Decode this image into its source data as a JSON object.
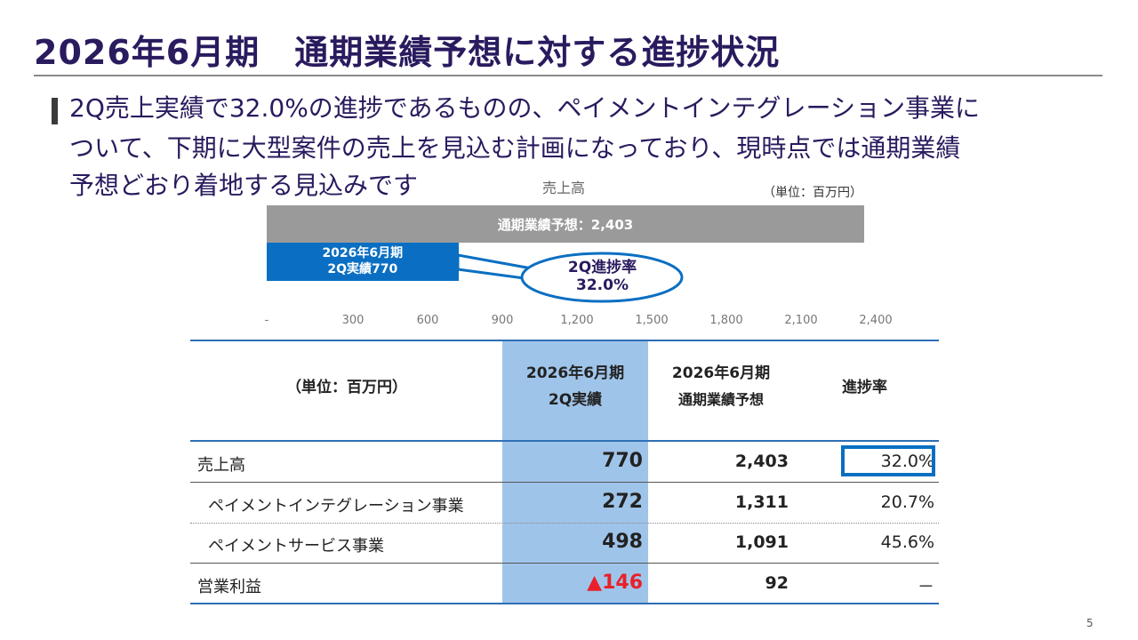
{
  "title": "2026年6月期　通期業績予想に対する進捗状況",
  "summary": {
    "line1": "2Q売上実績で32.0%の進捗であるものの、ペイメントインテグレーション事業に",
    "line2": "ついて、下期に大型案件の売上を見込む計画になっており、現時点では通期業績",
    "line3": "予想どおり着地する見込みです"
  },
  "chart_data": {
    "type": "bar",
    "orientation": "horizontal",
    "title": "売上高",
    "unit_note": "（単位：百万円）",
    "xlim": [
      0,
      2400
    ],
    "x_tick_labels": [
      "-",
      "300",
      "600",
      "900",
      "1,200",
      "1,500",
      "1,800",
      "2,100",
      "2,400"
    ],
    "x_tick_values": [
      0,
      300,
      600,
      900,
      1200,
      1500,
      1800,
      2100,
      2400
    ],
    "bars": [
      {
        "label": "通期業績予想：2,403",
        "value": 2403,
        "color": "#9a9a9a"
      },
      {
        "label_line1": "2026年6月期",
        "label_line2": "2Q実績770",
        "value": 770,
        "color": "#0a6fc2"
      }
    ],
    "callout": {
      "line1": "2Q進捗率",
      "line2": "32.0%",
      "value": 32.0
    }
  },
  "table": {
    "unit": "（単位：百万円）",
    "col2_line1": "2026年6月期",
    "col2_line2": "2Q実績",
    "col3_line1": "2026年6月期",
    "col3_line2": "通期業績予想",
    "col4": "進捗率",
    "rows": [
      {
        "label": "売上高",
        "actual": "770",
        "forecast": "2,403",
        "rate": "32.0%"
      },
      {
        "label": "ペイメントインテグレーション事業",
        "actual": "272",
        "forecast": "1,311",
        "rate": "20.7%"
      },
      {
        "label": "ペイメントサービス事業",
        "actual": "498",
        "forecast": "1,091",
        "rate": "45.6%"
      },
      {
        "label": "営業利益",
        "actual": "▲146",
        "forecast": "92",
        "rate": "－"
      }
    ]
  },
  "colors": {
    "title": "#2a1a5e",
    "accent_blue": "#0a6fc2",
    "highlight": "#9fc4e9",
    "negative": "#e8202a",
    "forecast_bar": "#9a9a9a"
  },
  "page_number": "5"
}
